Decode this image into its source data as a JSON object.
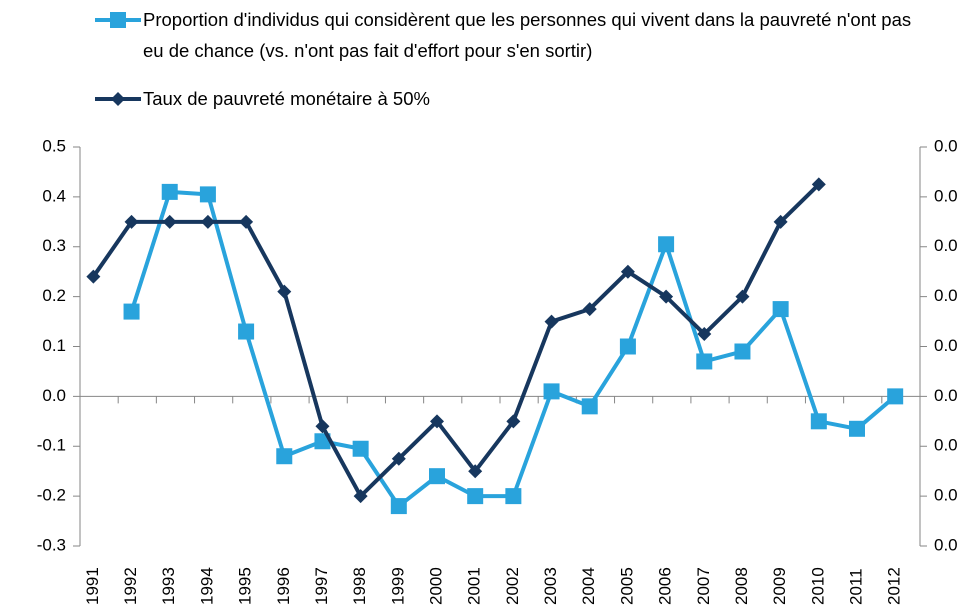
{
  "chart_data": {
    "type": "line",
    "categories": [
      "1991",
      "1992",
      "1993",
      "1994",
      "1995",
      "1996",
      "1997",
      "1998",
      "1999",
      "2000",
      "2001",
      "2002",
      "2003",
      "2004",
      "2005",
      "2006",
      "2007",
      "2008",
      "2009",
      "2010",
      "2011",
      "2012"
    ],
    "series": [
      {
        "name": "Proportion d'individus qui considèrent que les personnes qui vivent dans la pauvreté n'ont pas eu de chance (vs. n'ont pas fait d'effort pour s'en sortir)",
        "color": "#29a3dc",
        "marker": "square",
        "values": [
          null,
          0.17,
          0.41,
          0.405,
          0.13,
          -0.12,
          -0.09,
          -0.105,
          -0.22,
          -0.16,
          -0.2,
          -0.2,
          0.01,
          -0.02,
          0.1,
          0.305,
          0.07,
          0.09,
          0.175,
          -0.05,
          -0.065,
          0.0
        ]
      },
      {
        "name": "Taux de pauvreté monétaire à 50%",
        "color": "#17375e",
        "marker": "diamond",
        "axis": "y2",
        "values": [
          0.054,
          0.065,
          0.065,
          0.065,
          0.065,
          0.051,
          0.024,
          0.01,
          0.0175,
          0.025,
          0.015,
          0.025,
          0.045,
          0.0475,
          0.055,
          0.05,
          0.0425,
          0.05,
          0.065,
          0.0725,
          null,
          null
        ]
      }
    ],
    "ylim": [
      -0.3,
      0.5
    ],
    "yticks": [
      -0.3,
      -0.2,
      -0.1,
      {
        "value": 0,
        "label": "0.0"
      },
      0.1,
      0.2,
      0.3,
      0.4,
      0.5
    ],
    "y2lim": [
      0,
      0.08
    ],
    "y2ticks": [
      {
        "value": 0,
        "label": "0.0"
      },
      {
        "value": 0.01,
        "label": "0.0"
      },
      {
        "value": 0.02,
        "label": "0.0"
      },
      {
        "value": 0.03,
        "label": "0.0"
      },
      {
        "value": 0.04,
        "label": "0.0"
      },
      {
        "value": 0.05,
        "label": "0.0"
      },
      {
        "value": 0.06,
        "label": "0.0"
      },
      {
        "value": 0.07,
        "label": "0.0"
      },
      {
        "value": 0.08,
        "label": "0.0"
      }
    ]
  }
}
